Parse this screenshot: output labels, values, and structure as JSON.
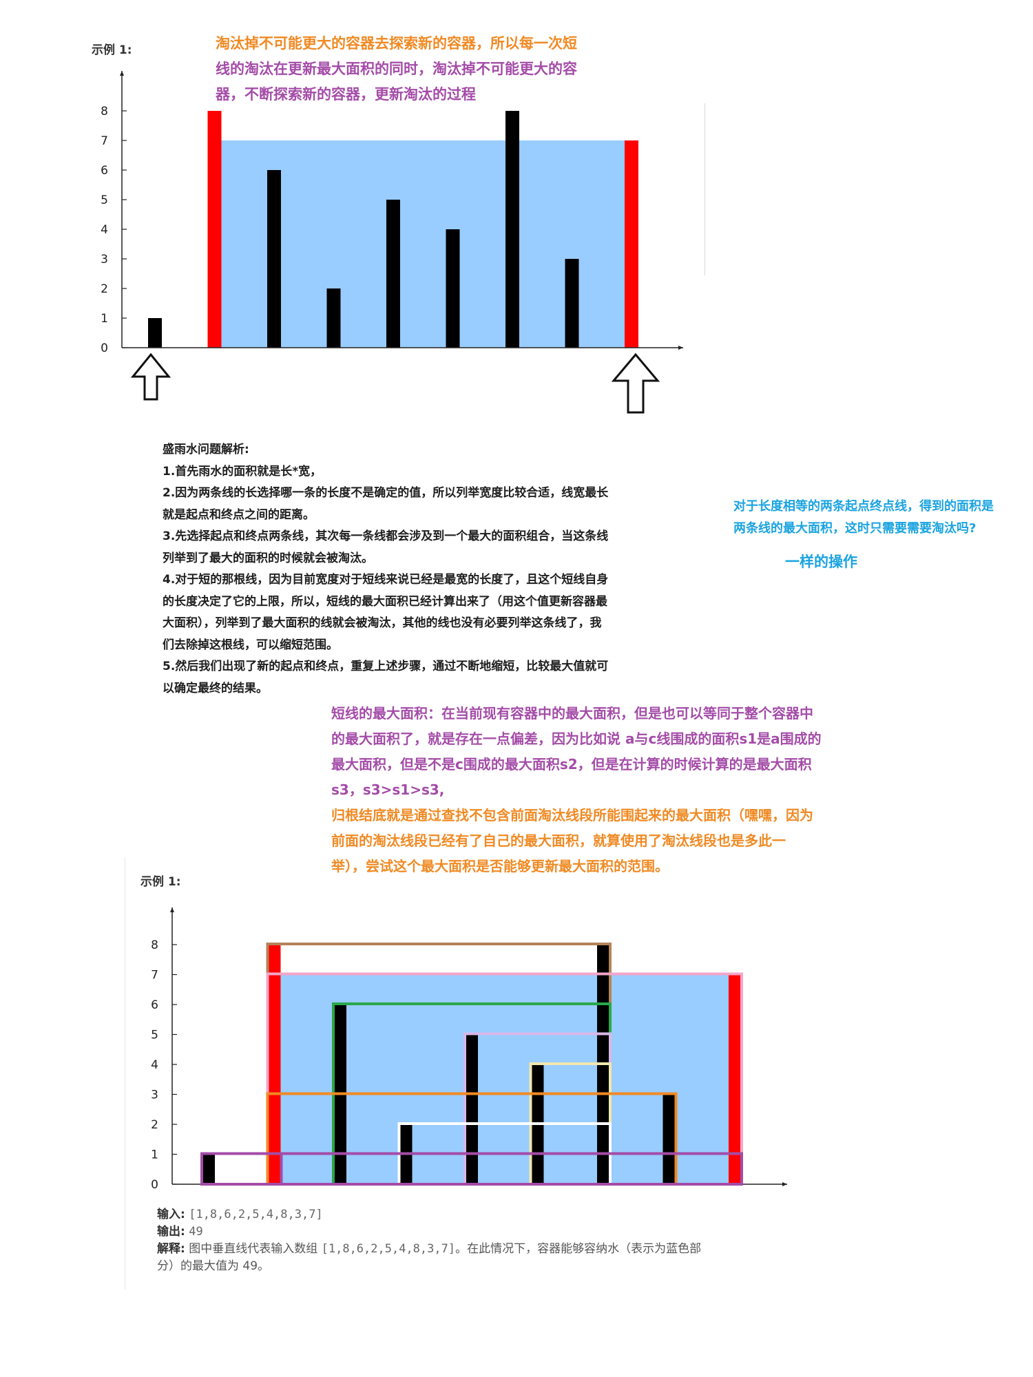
{
  "top_example": {
    "label": "示例 1:",
    "note_line1_orange": "淘汰掉不可能更大的容器去探索新的容器，所以每一次短",
    "note_line2_purple": "线的淘汰在更新最大面积的同时，淘汰掉不可能更大的容",
    "note_line3_purple": "器，不断探索新的容器，更新淘汰的过程"
  },
  "analysis": {
    "title": "盛雨水问题解析:",
    "p1": "1.首先雨水的面积就是长*宽，",
    "p2a": "2.因为两条线的长选择哪一条的长度不是确定的值，所以列举宽度比较合适，线宽最长",
    "p2b": "就是起点和终点之间的距离。",
    "p3a": "3.先选择起点和终点两条线，其次每一条线都会涉及到一个最大的面积组合，当这条线",
    "p3b": "列举到了最大的面积的时候就会被淘汰。",
    "p4a": "4.对于短的那根线，因为目前宽度对于短线来说已经是最宽的长度了，且这个短线自身",
    "p4b": "的长度决定了它的上限，所以，短线的最大面积已经计算出来了（用这个值更新容器最",
    "p4c": "大面积），列举到了最大面积的线就会被淘汰，其他的线也没有必要列举这条线了，我",
    "p4d": "们去除掉这根线，可以缩短范围。",
    "p5a": "5.然后我们出现了新的起点和终点，重复上述步骤，通过不断地缩短，比较最大值就可",
    "p5b": "以确定最终的结果。"
  },
  "side_note": {
    "line1": "对于长度相等的两条起点终点线，得到的面积是",
    "line2": "两条线的最大面积，这时只需要需要淘汰吗?",
    "answer": "一样的操作"
  },
  "mid_note": {
    "l1": "短线的最大面积：在当前现有容器中的最大面积，但是也可以等同于整个容器中",
    "l2": "的最大面积了，就是存在一点偏差，因为比如说 a与c线围成的面积s1是a围成的",
    "l3": "最大面积，但是不是c围成的最大面积s2，但是在计算的时候计算的是最大面积",
    "l4": "s3，s3>s1>s3,",
    "l5": "归根结底就是通过查找不包含前面淘汰线段所能围起来的最大面积（嘿嘿，因为",
    "l6": "前面的淘汰线段已经有了自己的最大面积，就算使用了淘汰线段也是多此一",
    "l7": "举），尝试这个最大面积是否能够更新最大面积的范围。"
  },
  "bottom_example": {
    "label": "示例 1:",
    "input_key": "输入:",
    "input_val": "[1,8,6,2,5,4,8,3,7]",
    "output_key": "输出:",
    "output_val": "49",
    "explain_key": "解释:",
    "explain_a": "图中垂直线代表输入数组",
    "explain_b": "[1,8,6,2,5,4,8,3,7]",
    "explain_c": "。在此情况下，容器能够容纳水（表示为蓝色部",
    "explain_d": "分）的最大值为 49。"
  },
  "colors": {
    "water": "#99ccff",
    "bar": "#000000",
    "highlight": "#ff0000",
    "orange": "#f08a24",
    "purple": "#a44ca8",
    "blue_text": "#1aa3e0"
  },
  "chart_data": [
    {
      "type": "bar",
      "name_hint": "top",
      "values": [
        1,
        8,
        6,
        2,
        5,
        4,
        8,
        3,
        7
      ],
      "highlight_indices": [
        1,
        8
      ],
      "water_level": 7,
      "yticks": [
        "0",
        "1",
        "2",
        "3",
        "4",
        "5",
        "6",
        "7",
        "8"
      ],
      "ylim": [
        0,
        8
      ],
      "pointer_indices": [
        0,
        8
      ]
    },
    {
      "type": "bar",
      "name_hint": "bottom",
      "values": [
        1,
        8,
        6,
        2,
        5,
        4,
        8,
        3,
        7
      ],
      "highlight_indices": [
        1,
        8
      ],
      "water_level": 7,
      "yticks": [
        "0",
        "1",
        "2",
        "3",
        "4",
        "5",
        "6",
        "7",
        "8"
      ],
      "ylim": [
        0,
        8
      ],
      "containers": [
        {
          "from": 0,
          "to": 1,
          "height": 1,
          "color": "#a44ca8"
        },
        {
          "from": 1,
          "to": 6,
          "height": 8,
          "color": "#b5835a"
        },
        {
          "from": 1,
          "to": 8,
          "height": 7,
          "color": "#f4a6c8"
        },
        {
          "from": 2,
          "to": 6,
          "height": 6,
          "color": "#2aa84a"
        },
        {
          "from": 4,
          "to": 6,
          "height": 5,
          "color": "#d8b8e8"
        },
        {
          "from": 5,
          "to": 6,
          "height": 4,
          "color": "#f2e6b0"
        },
        {
          "from": 1,
          "to": 7,
          "height": 3,
          "color": "#f08a24"
        },
        {
          "from": 3,
          "to": 6,
          "height": 2,
          "color": "#ffffff"
        },
        {
          "from": 0,
          "to": 8,
          "height": 1,
          "color": "#a44ca8"
        }
      ]
    }
  ]
}
